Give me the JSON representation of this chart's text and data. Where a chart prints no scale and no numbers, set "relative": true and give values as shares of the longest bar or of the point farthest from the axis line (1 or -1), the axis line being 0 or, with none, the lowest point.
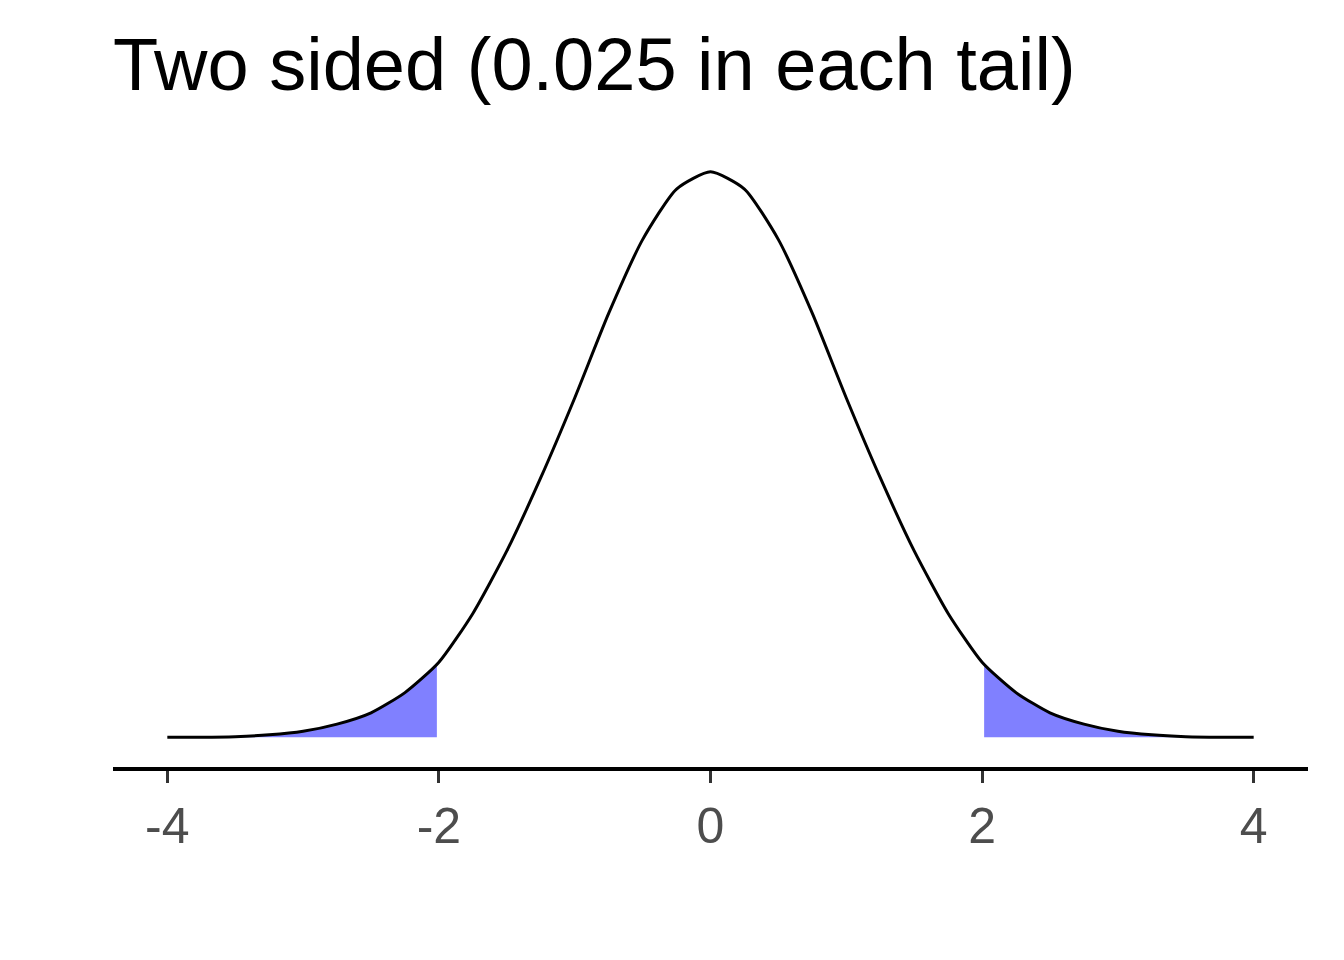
{
  "chart_data": {
    "type": "line",
    "title": "Two sided (0.025 in each tail)",
    "relative": true,
    "xlim": [
      -4.4,
      4.4
    ],
    "xticks": [
      -4,
      -2,
      0,
      2,
      4
    ],
    "tick_labels": "x",
    "series": [
      {
        "type": "area",
        "color": "#8080ff",
        "x": [
          -4,
          -3.75,
          -3.5,
          -3.25,
          -3,
          -2.75,
          -2.5,
          -2.25,
          -2.015
        ],
        "values": [
          0.05,
          0.05,
          0.051,
          0.054,
          0.06,
          0.072,
          0.091,
          0.125,
          0.17
        ]
      },
      {
        "type": "area",
        "color": "#8080ff",
        "x": [
          2.015,
          2.25,
          2.5,
          2.75,
          3,
          3.25,
          3.5,
          3.75,
          4
        ],
        "values": [
          0.17,
          0.125,
          0.091,
          0.072,
          0.06,
          0.054,
          0.051,
          0.05,
          0.05
        ]
      },
      {
        "type": "line",
        "color": "#000000",
        "x": [
          -4,
          -3.75,
          -3.5,
          -3.25,
          -3,
          -2.75,
          -2.5,
          -2.25,
          -2,
          -1.75,
          -1.5,
          -1.25,
          -1,
          -0.75,
          -0.5,
          -0.25,
          0,
          0.25,
          0.5,
          0.75,
          1,
          1.25,
          1.5,
          1.75,
          2,
          2.25,
          2.5,
          2.75,
          3,
          3.25,
          3.5,
          3.75,
          4
        ],
        "values": [
          0.05,
          0.05,
          0.051,
          0.054,
          0.06,
          0.072,
          0.091,
          0.125,
          0.176,
          0.258,
          0.363,
          0.486,
          0.62,
          0.762,
          0.886,
          0.971,
          1,
          0.971,
          0.886,
          0.762,
          0.62,
          0.486,
          0.363,
          0.258,
          0.176,
          0.125,
          0.091,
          0.072,
          0.06,
          0.054,
          0.051,
          0.05,
          0.05
        ]
      }
    ]
  }
}
